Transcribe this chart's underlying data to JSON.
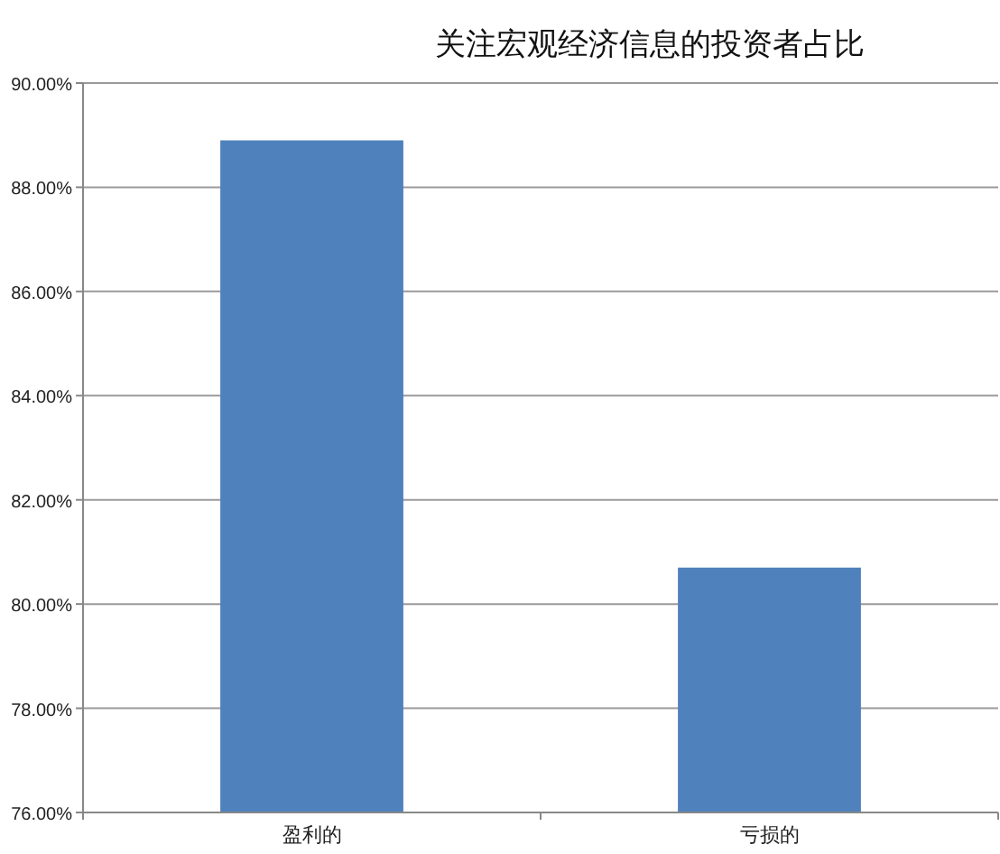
{
  "chart_data": {
    "type": "bar",
    "title": "关注宏观经济信息的投资者占比",
    "categories": [
      "盈利的",
      "亏损的"
    ],
    "values": [
      88.9,
      80.7
    ],
    "color": "#4f81bd",
    "ylim": [
      76,
      90
    ],
    "yticks": [
      {
        "value": 76,
        "label": "76.00%"
      },
      {
        "value": 78,
        "label": "78.00%"
      },
      {
        "value": 80,
        "label": "80.00%"
      },
      {
        "value": 82,
        "label": "82.00%"
      },
      {
        "value": 84,
        "label": "84.00%"
      },
      {
        "value": 86,
        "label": "86.00%"
      },
      {
        "value": 88,
        "label": "88.00%"
      },
      {
        "value": 90,
        "label": "90.00%"
      }
    ],
    "grid": "y"
  }
}
